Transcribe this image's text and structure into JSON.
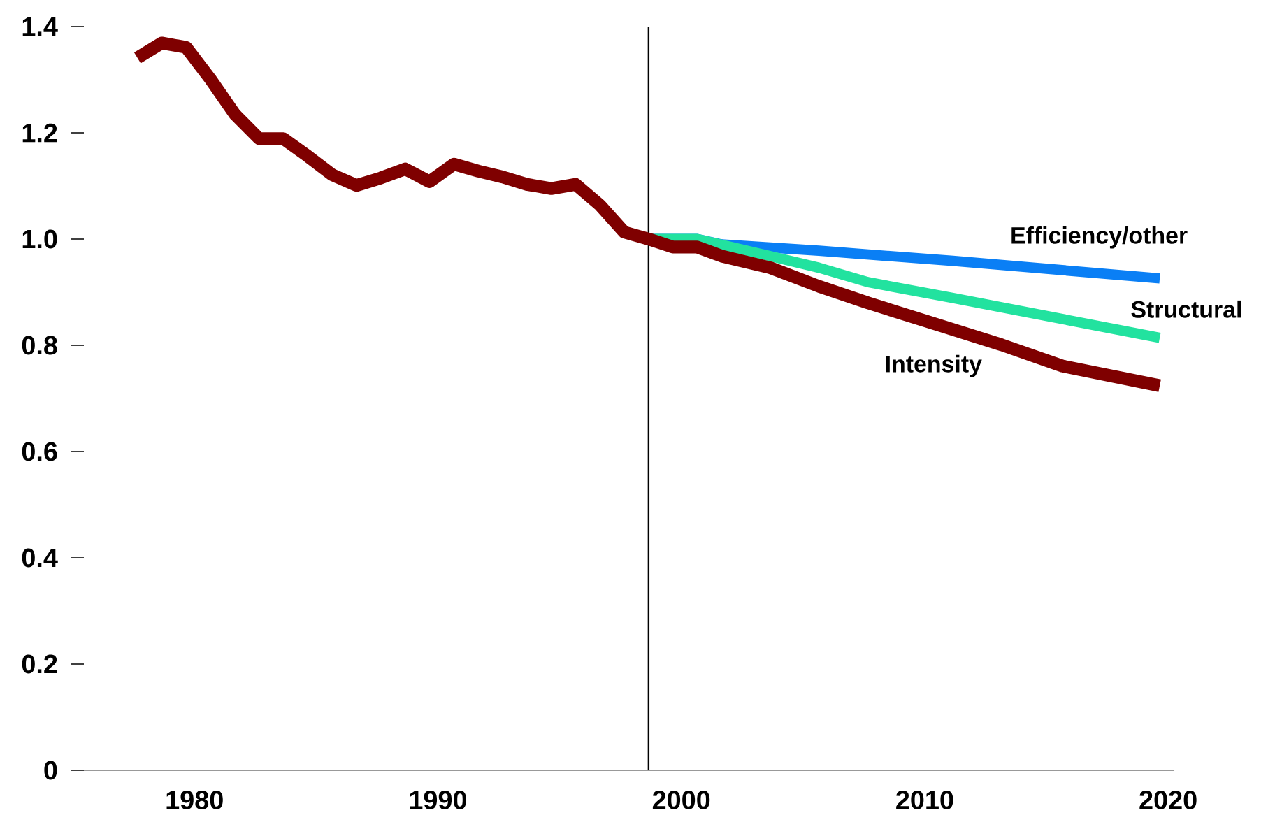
{
  "chart_data": {
    "type": "line",
    "xlim": [
      1975.8,
      2020.6
    ],
    "ylim": [
      0,
      1.4
    ],
    "xticks": [
      1980,
      1990,
      2000,
      2010,
      2020
    ],
    "yticks": [
      0,
      0.2,
      0.4,
      0.6,
      0.8,
      {
        "value": 1.0,
        "label": "1.0"
      },
      1.2,
      1.4
    ],
    "legend": false,
    "ref_lines": [
      {
        "axis": "x",
        "value": 1999,
        "color": "#000000"
      }
    ],
    "series": [
      {
        "name": "Efficiency/other",
        "color": "#0a7ff5",
        "x": [
          1999,
          2001,
          2002,
          2006,
          2011.5,
          2020
        ],
        "values": [
          1.0,
          1.0,
          0.99,
          0.978,
          0.959,
          0.926
        ]
      },
      {
        "name": "Structural",
        "color": "#22e29f",
        "x": [
          1999,
          2001,
          2004,
          2006,
          2008,
          2011.5,
          2015.5,
          2020
        ],
        "values": [
          1.0,
          1.0,
          0.968,
          0.946,
          0.919,
          0.889,
          0.854,
          0.814
        ]
      },
      {
        "name": "Intensity",
        "color": "#7f0000",
        "x": [
          1978,
          1979,
          1980,
          1981,
          1982,
          1983,
          1984,
          1985,
          1986,
          1987,
          1988,
          1989,
          1990,
          1991,
          1992,
          1993,
          1994,
          1995,
          1996,
          1997,
          1998,
          1999,
          2000,
          2001,
          2002,
          2004,
          2006,
          2008,
          2011,
          2013.5,
          2016,
          2020
        ],
        "values": [
          1.341,
          1.369,
          1.361,
          1.301,
          1.235,
          1.189,
          1.189,
          1.156,
          1.121,
          1.101,
          1.115,
          1.132,
          1.108,
          1.141,
          1.128,
          1.117,
          1.103,
          1.095,
          1.103,
          1.064,
          1.013,
          1.0,
          0.985,
          0.985,
          0.968,
          0.946,
          0.911,
          0.88,
          0.837,
          0.801,
          0.761,
          0.724
        ]
      }
    ]
  }
}
